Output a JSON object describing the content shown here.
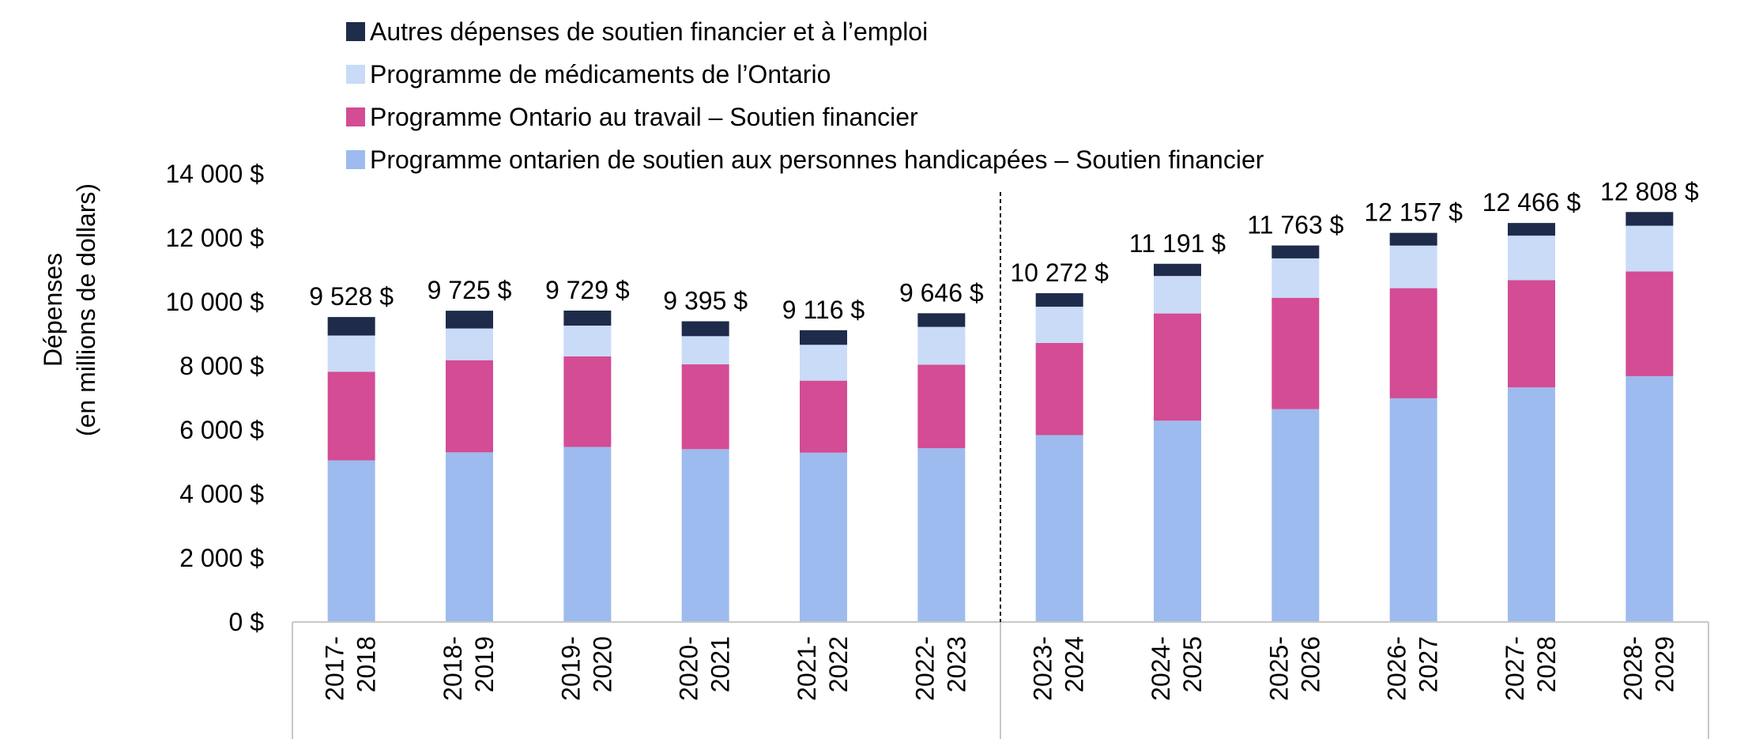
{
  "chart_data": {
    "type": "bar",
    "stacked": true,
    "categories": [
      [
        "2017-",
        "2018"
      ],
      [
        "2018-",
        "2019"
      ],
      [
        "2019-",
        "2020"
      ],
      [
        "2020-",
        "2021"
      ],
      [
        "2021-",
        "2022"
      ],
      [
        "2022-",
        "2023"
      ],
      [
        "2023-",
        "2024"
      ],
      [
        "2024-",
        "2025"
      ],
      [
        "2025-",
        "2026"
      ],
      [
        "2026-",
        "2027"
      ],
      [
        "2027-",
        "2028"
      ],
      [
        "2028-",
        "2029"
      ]
    ],
    "series": [
      {
        "name": "Programme ontarien de soutien aux personnes handicapées – Soutien financier",
        "color": "#9dbbee",
        "values": [
          5050,
          5300,
          5470,
          5400,
          5290,
          5430,
          5840,
          6290,
          6650,
          6990,
          7330,
          7680
        ]
      },
      {
        "name": "Programme Ontario au travail – Soutien financier",
        "color": "#d34c94",
        "values": [
          2770,
          2880,
          2830,
          2650,
          2250,
          2610,
          2880,
          3350,
          3480,
          3440,
          3350,
          3270
        ]
      },
      {
        "name": "Programme de médicaments de l’Ontario",
        "color": "#c9dbf7",
        "values": [
          1130,
          990,
          960,
          880,
          1120,
          1180,
          1130,
          1170,
          1230,
          1330,
          1390,
          1430
        ]
      },
      {
        "name": "Autres dépenses de soutien financier et à l’emploi",
        "color": "#1e2b4a",
        "values": [
          578,
          555,
          469,
          465,
          456,
          426,
          422,
          381,
          403,
          397,
          396,
          428
        ]
      }
    ],
    "totals": [
      9528,
      9725,
      9729,
      9395,
      9116,
      9646,
      10272,
      11191,
      11763,
      12157,
      12466,
      12808
    ],
    "total_labels": [
      "9 528 $",
      "9 725 $",
      "9 729 $",
      "9 395 $",
      "9 116 $",
      "9 646 $",
      "10 272 $",
      "11 191 $",
      "11 763 $",
      "12 157 $",
      "12 466 $",
      "12 808 $"
    ],
    "ylabel": [
      "Dépenses",
      "(en millions de dollars)"
    ],
    "ylim": [
      0,
      14000
    ],
    "yticks": [
      0,
      2000,
      4000,
      6000,
      8000,
      10000,
      12000,
      14000
    ],
    "ytick_labels": [
      "0 $",
      "2 000 $",
      "4 000 $",
      "6 000 $",
      "8 000 $",
      "10 000 $",
      "12 000 $",
      "14 000 $"
    ],
    "grid": false,
    "legend_position": "top",
    "divider_after_category": 5
  }
}
